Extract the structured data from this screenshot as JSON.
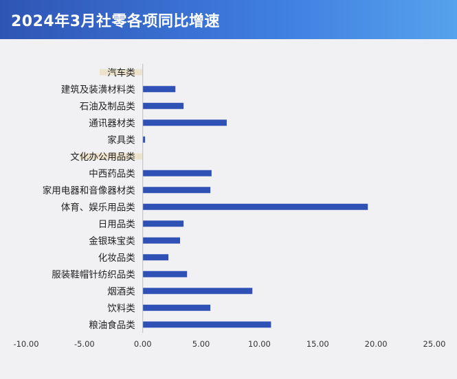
{
  "header": {
    "title": "2024年3月社零各项同比增速"
  },
  "colors": {
    "positive": "#2f50b4",
    "negative": "#ede2cc",
    "header_start": "#2f55b4",
    "header_end": "#56a2ec"
  },
  "chart_data": {
    "type": "bar",
    "orientation": "horizontal",
    "title": "2024年3月社零各项同比增速",
    "xlabel": "",
    "ylabel": "",
    "xlim": [
      -10,
      25
    ],
    "xticks": [
      -10,
      -5,
      0,
      5,
      10,
      15,
      20,
      25
    ],
    "tick_labels": [
      "-10.00",
      "-5.00",
      "0.00",
      "5.00",
      "10.00",
      "15.00",
      "20.00",
      "25.00"
    ],
    "grid": false,
    "categories": [
      "汽车类",
      "建筑及装潢材料类",
      "石油及制品类",
      "通讯器材类",
      "家具类",
      "文化办公用品类",
      "中西药品类",
      "家用电器和音像器材类",
      "体育、娱乐用品类",
      "日用品类",
      "金银珠宝类",
      "化妆品类",
      "服装鞋帽针纺织品类",
      "烟酒类",
      "饮料类",
      "粮油食品类"
    ],
    "values": [
      -3.7,
      2.8,
      3.5,
      7.2,
      0.2,
      -5.4,
      5.9,
      5.8,
      19.3,
      3.5,
      3.2,
      2.2,
      3.8,
      9.4,
      5.8,
      11.0
    ]
  }
}
